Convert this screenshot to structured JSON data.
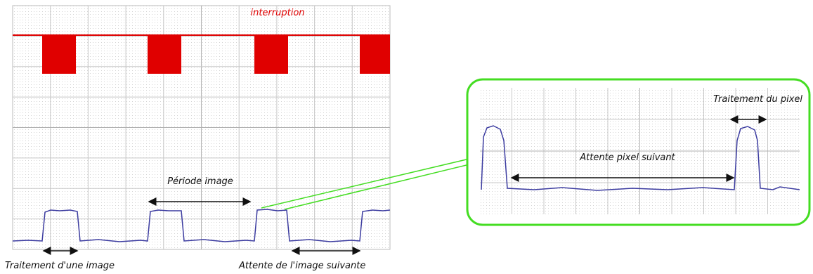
{
  "labels": {
    "interruption": "interruption",
    "period": "Période image",
    "image_processing": "Traitement d'une image",
    "wait_image": "Attente de l'image suivante",
    "pixel_processing": "Traitement du pixel",
    "wait_pixel": "Attente pixel suivant"
  }
}
